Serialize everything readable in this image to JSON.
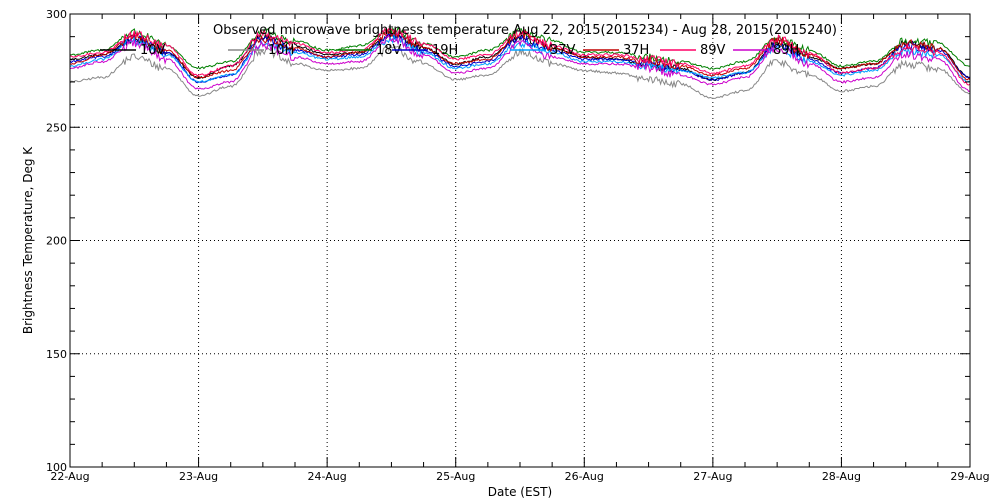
{
  "chart_data": {
    "type": "line",
    "title": "Observed microwave brightness temperature Aug 22, 2015(2015234) - Aug 28, 2015(2015240)",
    "xlabel": "Date (EST)",
    "ylabel": "Brightness Temperature, Deg K",
    "xlim": [
      "22-Aug",
      "29-Aug"
    ],
    "ylim": [
      100,
      300
    ],
    "x_ticks": [
      "22-Aug",
      "23-Aug",
      "24-Aug",
      "25-Aug",
      "26-Aug",
      "27-Aug",
      "28-Aug",
      "29-Aug"
    ],
    "y_ticks": [
      100,
      150,
      200,
      250,
      300
    ],
    "grid": true,
    "legend_position": "top",
    "x": [
      0,
      0.25,
      0.5,
      0.75,
      1.0,
      1.25,
      1.5,
      1.75,
      2.0,
      2.25,
      2.5,
      2.75,
      3.0,
      3.25,
      3.5,
      3.75,
      4.0,
      4.25,
      4.5,
      4.75,
      5.0,
      5.25,
      5.5,
      5.75,
      6.0,
      6.25,
      6.5,
      6.75,
      7.0
    ],
    "series": [
      {
        "name": "10V",
        "color": "#000000",
        "values": [
          280,
          282,
          289,
          283,
          272,
          277,
          290,
          286,
          282,
          283,
          291,
          285,
          278,
          281,
          290,
          285,
          281,
          280,
          277,
          276,
          271,
          274,
          287,
          281,
          276,
          278,
          287,
          285,
          272
        ]
      },
      {
        "name": "10H",
        "color": "#888888",
        "values": [
          270,
          272,
          281,
          276,
          264,
          268,
          284,
          278,
          275,
          276,
          285,
          278,
          271,
          273,
          283,
          278,
          275,
          274,
          271,
          269,
          263,
          266,
          279,
          273,
          266,
          268,
          278,
          276,
          265
        ]
      },
      {
        "name": "18V",
        "color": "#008000",
        "values": [
          282,
          284,
          292,
          286,
          276,
          279,
          292,
          288,
          284,
          286,
          293,
          287,
          281,
          284,
          292,
          288,
          283,
          283,
          281,
          279,
          276,
          279,
          289,
          284,
          277,
          279,
          288,
          287,
          277
        ]
      },
      {
        "name": "19H",
        "color": "#0000cc",
        "values": [
          279,
          281,
          289,
          283,
          270,
          273,
          289,
          284,
          281,
          282,
          290,
          284,
          277,
          279,
          289,
          284,
          280,
          280,
          278,
          275,
          271,
          274,
          286,
          280,
          274,
          276,
          286,
          284,
          272
        ]
      },
      {
        "name": "37V",
        "color": "#00a0ff",
        "values": [
          277,
          280,
          288,
          282,
          270,
          273,
          287,
          283,
          280,
          281,
          289,
          283,
          276,
          278,
          287,
          283,
          279,
          279,
          277,
          275,
          272,
          274,
          285,
          279,
          273,
          275,
          284,
          282,
          270
        ]
      },
      {
        "name": "37H",
        "color": "#c00000",
        "values": [
          278,
          282,
          290,
          284,
          272,
          275,
          289,
          285,
          281,
          283,
          292,
          285,
          278,
          280,
          291,
          285,
          281,
          281,
          279,
          277,
          273,
          276,
          288,
          282,
          276,
          278,
          287,
          285,
          271
        ]
      },
      {
        "name": "89V",
        "color": "#ff0066",
        "values": [
          281,
          283,
          291,
          286,
          273,
          277,
          291,
          287,
          283,
          284,
          293,
          287,
          280,
          282,
          292,
          286,
          282,
          282,
          280,
          278,
          274,
          277,
          289,
          283,
          274,
          276,
          285,
          283,
          269
        ]
      },
      {
        "name": "89H",
        "color": "#cc00cc",
        "values": [
          276,
          279,
          287,
          280,
          267,
          270,
          286,
          281,
          278,
          279,
          289,
          282,
          274,
          276,
          287,
          281,
          278,
          278,
          276,
          273,
          269,
          272,
          285,
          278,
          270,
          272,
          282,
          280,
          266
        ]
      }
    ]
  }
}
